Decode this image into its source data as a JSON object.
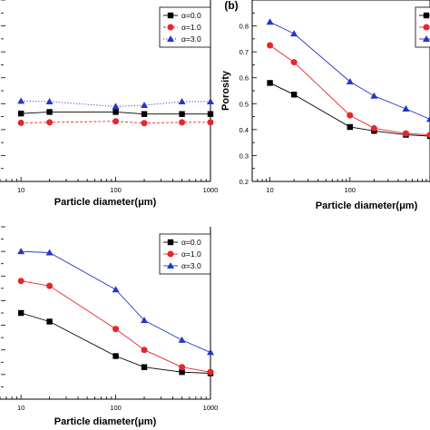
{
  "chart_data": [
    {
      "type": "line",
      "panel": "",
      "xlabel": "Particle diameter(μm)",
      "ylabel": "",
      "xscale": "log",
      "xlim": [
        6,
        1000
      ],
      "ylim": [
        0.2,
        0.9
      ],
      "xticks": [
        10,
        100,
        1000
      ],
      "xtick_labels": [
        "10",
        "100",
        "1000"
      ],
      "yticks": [],
      "legend_placement": "top-right",
      "series": [
        {
          "name": "α=0.0",
          "color": "#000000",
          "marker": "square",
          "dash": "solid",
          "x": [
            10,
            20,
            100,
            200,
            500,
            1000
          ],
          "y": [
            0.462,
            0.468,
            0.468,
            0.46,
            0.46,
            0.46
          ]
        },
        {
          "name": "α=1.0",
          "color": "#e8252b",
          "marker": "circle",
          "dash": "dashed",
          "x": [
            10,
            20,
            100,
            200,
            500,
            1000
          ],
          "y": [
            0.426,
            0.428,
            0.432,
            0.425,
            0.428,
            0.428
          ]
        },
        {
          "name": "α=3.0",
          "color": "#2436c8",
          "marker": "triangle",
          "dash": "dotted",
          "x": [
            10,
            20,
            100,
            200,
            500,
            1000
          ],
          "y": [
            0.51,
            0.508,
            0.489,
            0.494,
            0.508,
            0.508
          ]
        }
      ]
    },
    {
      "type": "line",
      "panel": "(b)",
      "xlabel": "Particle diameter(μm)",
      "ylabel": "Porosity",
      "xscale": "log",
      "xlim": [
        6,
        1000
      ],
      "ylim": [
        0.2,
        0.9
      ],
      "xticks": [
        10,
        100
      ],
      "xtick_labels": [
        "10",
        "100"
      ],
      "yticks": [
        0.2,
        0.3,
        0.4,
        0.5,
        0.6,
        0.7,
        0.8
      ],
      "ytick_labels": [
        "0.2",
        "0.3",
        "0.4",
        "0.5",
        "0.6",
        "0.7",
        "0.8"
      ],
      "legend_placement": "top-right",
      "series": [
        {
          "name": "",
          "color": "#000000",
          "marker": "square",
          "dash": "solid",
          "x": [
            10,
            20,
            100,
            200,
            500,
            1000
          ],
          "y": [
            0.58,
            0.535,
            0.41,
            0.395,
            0.38,
            0.375
          ]
        },
        {
          "name": "",
          "color": "#e8252b",
          "marker": "circle",
          "dash": "solid",
          "x": [
            10,
            20,
            100,
            200,
            500,
            1000
          ],
          "y": [
            0.725,
            0.66,
            0.455,
            0.405,
            0.385,
            0.38
          ]
        },
        {
          "name": "",
          "color": "#2436c8",
          "marker": "triangle",
          "dash": "solid",
          "x": [
            10,
            20,
            100,
            200,
            500,
            1000
          ],
          "y": [
            0.815,
            0.77,
            0.585,
            0.53,
            0.48,
            0.44
          ]
        }
      ]
    },
    {
      "type": "line",
      "panel": "",
      "xlabel": "Particle diameter(μm)",
      "ylabel": "",
      "xscale": "log",
      "xlim": [
        6,
        1000
      ],
      "ylim": [
        0.2,
        0.9
      ],
      "xticks": [
        10,
        100,
        1000
      ],
      "xtick_labels": [
        "10",
        "100",
        "1000"
      ],
      "yticks": [],
      "legend_placement": "top-right",
      "series": [
        {
          "name": "α=0.0",
          "color": "#000000",
          "marker": "square",
          "dash": "solid",
          "x": [
            10,
            20,
            100,
            200,
            500,
            1000
          ],
          "y": [
            0.55,
            0.515,
            0.375,
            0.33,
            0.31,
            0.305
          ]
        },
        {
          "name": "α=1.0",
          "color": "#e8252b",
          "marker": "circle",
          "dash": "solid",
          "x": [
            10,
            20,
            100,
            200,
            500,
            1000
          ],
          "y": [
            0.68,
            0.66,
            0.485,
            0.4,
            0.33,
            0.31
          ]
        },
        {
          "name": "α=3.0",
          "color": "#2436c8",
          "marker": "triangle",
          "dash": "solid",
          "x": [
            10,
            20,
            100,
            200,
            500,
            1000
          ],
          "y": [
            0.8,
            0.795,
            0.645,
            0.52,
            0.44,
            0.39
          ]
        }
      ]
    }
  ]
}
